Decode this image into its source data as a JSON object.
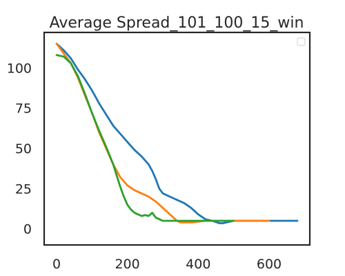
{
  "chart_data": {
    "type": "line",
    "title": "Average Spread_101_100_15_win",
    "xlabel": "",
    "ylabel": "",
    "xlim": [
      -35,
      715
    ],
    "ylim": [
      -10,
      122
    ],
    "xticks": [
      0,
      200,
      400,
      600
    ],
    "yticks": [
      0,
      25,
      50,
      75,
      100
    ],
    "grid": false,
    "legend": "top-right",
    "series": [
      {
        "color": "#1f77b4",
        "x": [
          0,
          20,
          40,
          60,
          80,
          100,
          120,
          140,
          160,
          180,
          200,
          220,
          240,
          260,
          270,
          280,
          290,
          300,
          310,
          320,
          340,
          360,
          380,
          400,
          420,
          440,
          460,
          470,
          480,
          500,
          520,
          540,
          560,
          580,
          600,
          620,
          640,
          660,
          680
        ],
        "y": [
          115,
          111,
          106,
          99,
          93,
          86,
          78,
          71,
          64,
          59,
          54,
          49,
          45,
          40,
          36,
          31,
          25,
          22,
          21,
          20,
          18,
          16,
          13,
          9,
          6,
          5,
          3.5,
          3.5,
          4,
          5,
          5,
          5,
          5,
          5,
          5,
          5,
          5,
          5,
          5
        ]
      },
      {
        "color": "#ff7f0e",
        "x": [
          0,
          20,
          40,
          60,
          80,
          100,
          120,
          140,
          160,
          180,
          200,
          220,
          240,
          260,
          280,
          300,
          320,
          340,
          350,
          360,
          380,
          400,
          420,
          440,
          460,
          480,
          500,
          520,
          540,
          560,
          580,
          600
        ],
        "y": [
          115,
          109,
          103,
          94,
          83,
          72,
          60,
          50,
          40,
          32,
          27,
          24,
          22,
          20,
          17,
          13,
          9,
          5,
          4,
          4,
          4,
          4.5,
          5,
          5,
          5,
          5,
          5,
          5,
          5,
          5,
          5,
          5
        ]
      },
      {
        "color": "#2ca02c",
        "x": [
          0,
          20,
          40,
          60,
          80,
          100,
          120,
          140,
          160,
          170,
          180,
          190,
          200,
          210,
          220,
          230,
          240,
          250,
          260,
          270,
          280,
          290,
          300,
          320,
          340,
          360,
          380,
          400,
          420,
          440,
          460,
          480,
          500
        ],
        "y": [
          108,
          107,
          103,
          95,
          84,
          72,
          61,
          51,
          40,
          33,
          26,
          20,
          15,
          12,
          10,
          9,
          8,
          8.5,
          8,
          10,
          7,
          6,
          5,
          5,
          5,
          5,
          5,
          5,
          5,
          5,
          5,
          5,
          5
        ]
      }
    ]
  }
}
